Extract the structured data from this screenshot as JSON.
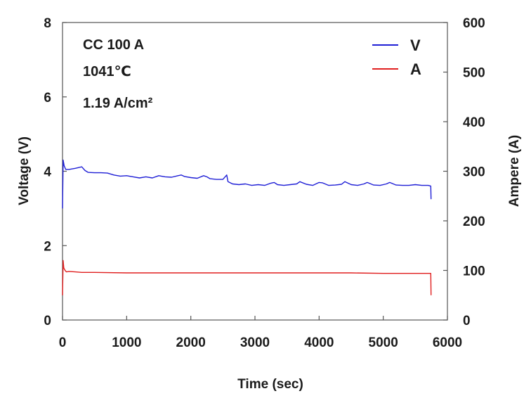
{
  "chart_data": {
    "type": "line",
    "title": "",
    "xlabel": "Time (sec)",
    "ylabel_left": "Voltage (V)",
    "ylabel_right": "Ampere (A)",
    "xlim": [
      0,
      6000
    ],
    "ylim_left": [
      0,
      8
    ],
    "ylim_right": [
      0,
      600
    ],
    "x_ticks": [
      "0",
      "1000",
      "2000",
      "3000",
      "4000",
      "5000",
      "6000"
    ],
    "y_left_ticks": [
      "0",
      "2",
      "4",
      "6",
      "8"
    ],
    "y_right_ticks": [
      "0",
      "100",
      "200",
      "300",
      "400",
      "500",
      "600"
    ],
    "grid": false,
    "legend_position": "top-right",
    "annotations": [
      "CC 100 A",
      "1041℃",
      "1.19 A/cm²"
    ],
    "series": [
      {
        "name": "V",
        "axis": "left",
        "color": "#1f1fd6",
        "x": [
          0,
          10,
          25,
          50,
          100,
          200,
          300,
          350,
          400,
          500,
          600,
          700,
          800,
          900,
          1000,
          1100,
          1200,
          1300,
          1400,
          1500,
          1600,
          1700,
          1800,
          1850,
          1900,
          2000,
          2100,
          2200,
          2250,
          2300,
          2400,
          2500,
          2560,
          2580,
          2650,
          2750,
          2850,
          2950,
          3050,
          3150,
          3250,
          3300,
          3350,
          3450,
          3550,
          3650,
          3700,
          3800,
          3900,
          4000,
          4050,
          4150,
          4250,
          4350,
          4400,
          4500,
          4600,
          4700,
          4750,
          4850,
          4950,
          5050,
          5100,
          5200,
          5300,
          5400,
          5500,
          5600,
          5700,
          5740,
          5745
        ],
        "y": [
          3.0,
          4.3,
          4.15,
          4.05,
          4.05,
          4.08,
          4.12,
          4.02,
          3.97,
          3.96,
          3.96,
          3.95,
          3.9,
          3.87,
          3.88,
          3.85,
          3.82,
          3.85,
          3.82,
          3.88,
          3.85,
          3.84,
          3.88,
          3.9,
          3.86,
          3.83,
          3.81,
          3.88,
          3.85,
          3.8,
          3.78,
          3.78,
          3.9,
          3.72,
          3.66,
          3.64,
          3.66,
          3.62,
          3.64,
          3.62,
          3.68,
          3.7,
          3.64,
          3.62,
          3.64,
          3.66,
          3.72,
          3.65,
          3.62,
          3.7,
          3.69,
          3.62,
          3.63,
          3.65,
          3.72,
          3.64,
          3.62,
          3.66,
          3.7,
          3.63,
          3.62,
          3.66,
          3.7,
          3.63,
          3.62,
          3.62,
          3.64,
          3.62,
          3.62,
          3.6,
          3.25
        ]
      },
      {
        "name": "A",
        "axis": "right",
        "color": "#e01f1f",
        "x": [
          0,
          10,
          20,
          40,
          60,
          100,
          200,
          300,
          500,
          1000,
          1500,
          2000,
          2500,
          3000,
          3500,
          4000,
          4500,
          5000,
          5500,
          5700,
          5740,
          5745
        ],
        "y": [
          50,
          120,
          105,
          100,
          97,
          98,
          97,
          96,
          96,
          95,
          95,
          95,
          95,
          95,
          95,
          95,
          95,
          94,
          94,
          94,
          94,
          50
        ]
      }
    ]
  }
}
